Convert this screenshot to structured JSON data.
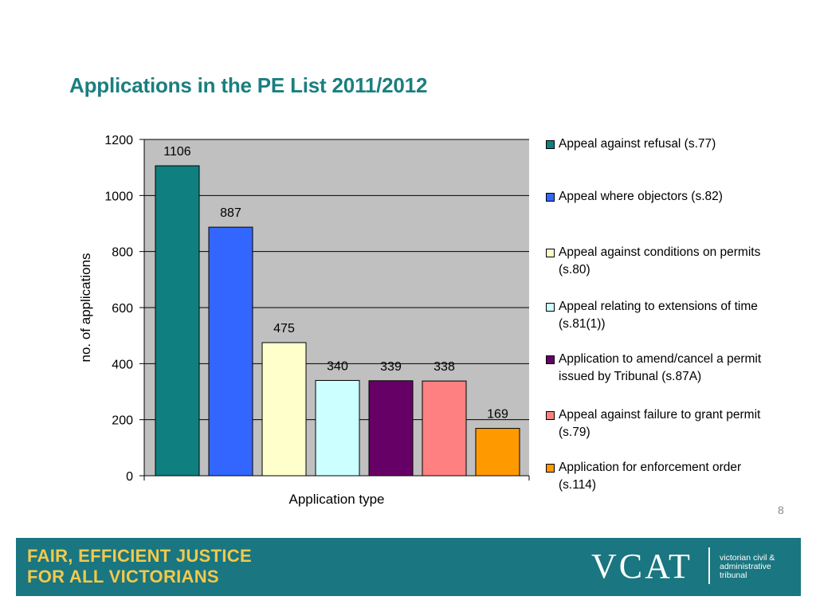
{
  "slide": {
    "title": "Applications in the PE List 2011/2012",
    "page_number": "8"
  },
  "chart_data": {
    "type": "bar",
    "title": "",
    "xlabel": "Application type",
    "ylabel": "no. of applications",
    "ylim": [
      0,
      1200
    ],
    "yticks": [
      0,
      200,
      400,
      600,
      800,
      1000,
      1200
    ],
    "grid": true,
    "legend_position": "right",
    "series": [
      {
        "name": "Appeal against refusal (s.77)",
        "value": 1106,
        "label": "1106",
        "color": "#0f7f7f"
      },
      {
        "name": "Appeal where objectors (s.82)",
        "value": 887,
        "label": "887",
        "color": "#3366ff"
      },
      {
        "name": "Appeal against conditions on permits (s.80)",
        "value": 475,
        "label": "475",
        "color": "#ffffcc"
      },
      {
        "name": "Appeal relating to extensions of time (s.81(1))",
        "value": 340,
        "label": "340",
        "color": "#ccffff"
      },
      {
        "name": "Application to amend/cancel a permit issued by Tribunal (s.87A)",
        "value": 339,
        "label": "339",
        "color": "#660066"
      },
      {
        "name": "Appeal against failure to grant permit (s.79)",
        "value": 338,
        "label": "338",
        "color": "#ff8080"
      },
      {
        "name": "Application for enforcement order (s.114)",
        "value": 169,
        "label": "169",
        "color": "#ff9900"
      }
    ]
  },
  "footer": {
    "tagline_line1": "FAIR, EFFICIENT JUSTICE",
    "tagline_line2": "FOR ALL VICTORIANS",
    "logo_text": "VCAT",
    "org_line1": "victorian civil &",
    "org_line2": "administrative",
    "org_line3": "tribunal"
  }
}
